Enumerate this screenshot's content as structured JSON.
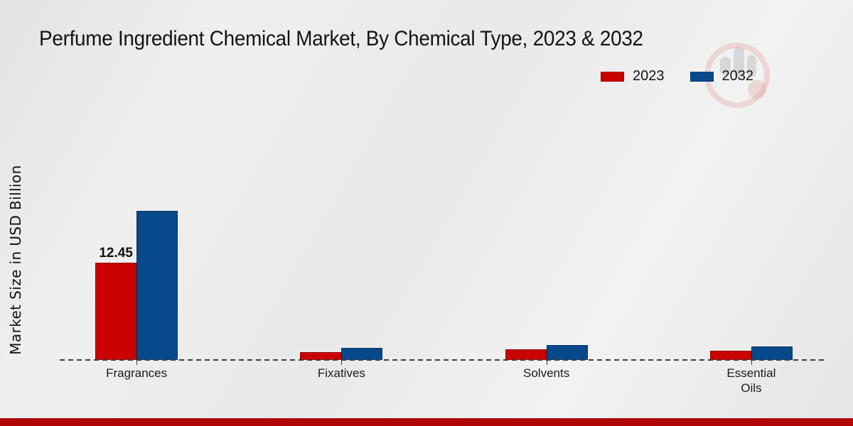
{
  "page": {
    "title": "Perfume Ingredient Chemical Market, By Chemical Type, 2023 & 2032",
    "y_axis_label": "Market Size in USD Billion",
    "watermark_icon": "market-research-brand-logo"
  },
  "colors": {
    "series_2023": "#c90201",
    "series_2032": "#08498b",
    "footer_bar": "#b00505",
    "background": "#ececec"
  },
  "chart_data": {
    "type": "bar",
    "title": "Perfume Ingredient Chemical Market, By Chemical Type, 2023 & 2032",
    "xlabel": "",
    "ylabel": "Market Size in USD Billion",
    "categories": [
      "Fragrances",
      "Fixatives",
      "Solvents",
      "Essential\nOils"
    ],
    "series": [
      {
        "name": "2023",
        "color": "#c90201",
        "values": [
          12.45,
          1.0,
          1.35,
          1.2
        ],
        "bar_labels": [
          "12.45",
          "",
          "",
          ""
        ]
      },
      {
        "name": "2032",
        "color": "#08498b",
        "values": [
          19.1,
          1.55,
          1.9,
          1.75
        ],
        "bar_labels": [
          "",
          "",
          "",
          ""
        ]
      }
    ],
    "ylim": [
      0,
      21
    ],
    "grid": false,
    "legend_position": "top-right",
    "x_axis_line_style": "dashed",
    "value_axis_ticks_visible": false
  }
}
